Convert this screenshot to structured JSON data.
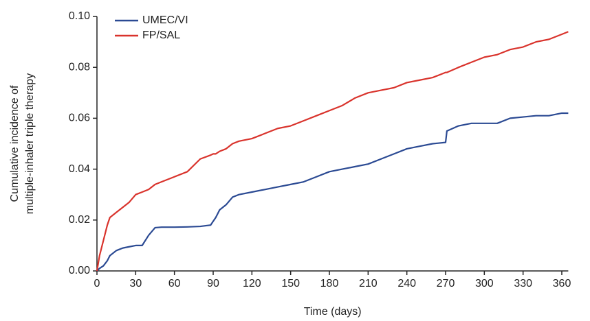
{
  "chart_data": {
    "type": "line",
    "x_label": "Time (days)",
    "y_label": [
      "Cumulative incidence of",
      "multiple-inhaler triple therapy"
    ],
    "xlim": [
      0,
      365
    ],
    "ylim": [
      0,
      0.1
    ],
    "xticks": [
      0,
      30,
      60,
      90,
      120,
      150,
      180,
      210,
      240,
      270,
      300,
      330,
      360
    ],
    "yticks": [
      {
        "value": 0,
        "label": "0.00"
      },
      {
        "value": 0.02,
        "label": "0.02"
      },
      {
        "value": 0.04,
        "label": "0.04"
      },
      {
        "value": 0.06,
        "label": "0.06"
      },
      {
        "value": 0.08,
        "label": "0.08"
      },
      {
        "value": 0.1,
        "label": "0.10"
      }
    ],
    "legend": "upper-left",
    "x": [
      0,
      2,
      5,
      8,
      10,
      15,
      20,
      25,
      30,
      35,
      40,
      45,
      50,
      60,
      70,
      80,
      88,
      90,
      92,
      95,
      100,
      105,
      110,
      120,
      130,
      140,
      150,
      160,
      170,
      180,
      190,
      200,
      210,
      220,
      230,
      240,
      250,
      260,
      270,
      271,
      280,
      290,
      300,
      310,
      320,
      330,
      340,
      350,
      360,
      365
    ],
    "series": [
      {
        "name": "UMEC/VI",
        "color": "#2b4a93",
        "values": [
          0,
          0.001,
          0.002,
          0.004,
          0.006,
          0.008,
          0.009,
          0.0095,
          0.01,
          0.01,
          0.014,
          0.017,
          0.0172,
          0.0172,
          0.0173,
          0.0175,
          0.018,
          0.0195,
          0.021,
          0.024,
          0.026,
          0.029,
          0.03,
          0.031,
          0.032,
          0.033,
          0.034,
          0.035,
          0.037,
          0.039,
          0.04,
          0.041,
          0.042,
          0.044,
          0.046,
          0.048,
          0.049,
          0.05,
          0.0505,
          0.055,
          0.057,
          0.058,
          0.058,
          0.058,
          0.06,
          0.0605,
          0.061,
          0.061,
          0.062,
          0.062
        ]
      },
      {
        "name": "FP/SAL",
        "color": "#d9332c",
        "values": [
          0,
          0.006,
          0.012,
          0.018,
          0.021,
          0.023,
          0.025,
          0.027,
          0.03,
          0.031,
          0.032,
          0.034,
          0.035,
          0.037,
          0.039,
          0.044,
          0.0455,
          0.046,
          0.046,
          0.047,
          0.048,
          0.05,
          0.051,
          0.052,
          0.054,
          0.056,
          0.057,
          0.059,
          0.061,
          0.063,
          0.065,
          0.068,
          0.07,
          0.071,
          0.072,
          0.074,
          0.075,
          0.076,
          0.078,
          0.078,
          0.08,
          0.082,
          0.084,
          0.085,
          0.087,
          0.088,
          0.09,
          0.091,
          0.093,
          0.094
        ]
      }
    ]
  }
}
